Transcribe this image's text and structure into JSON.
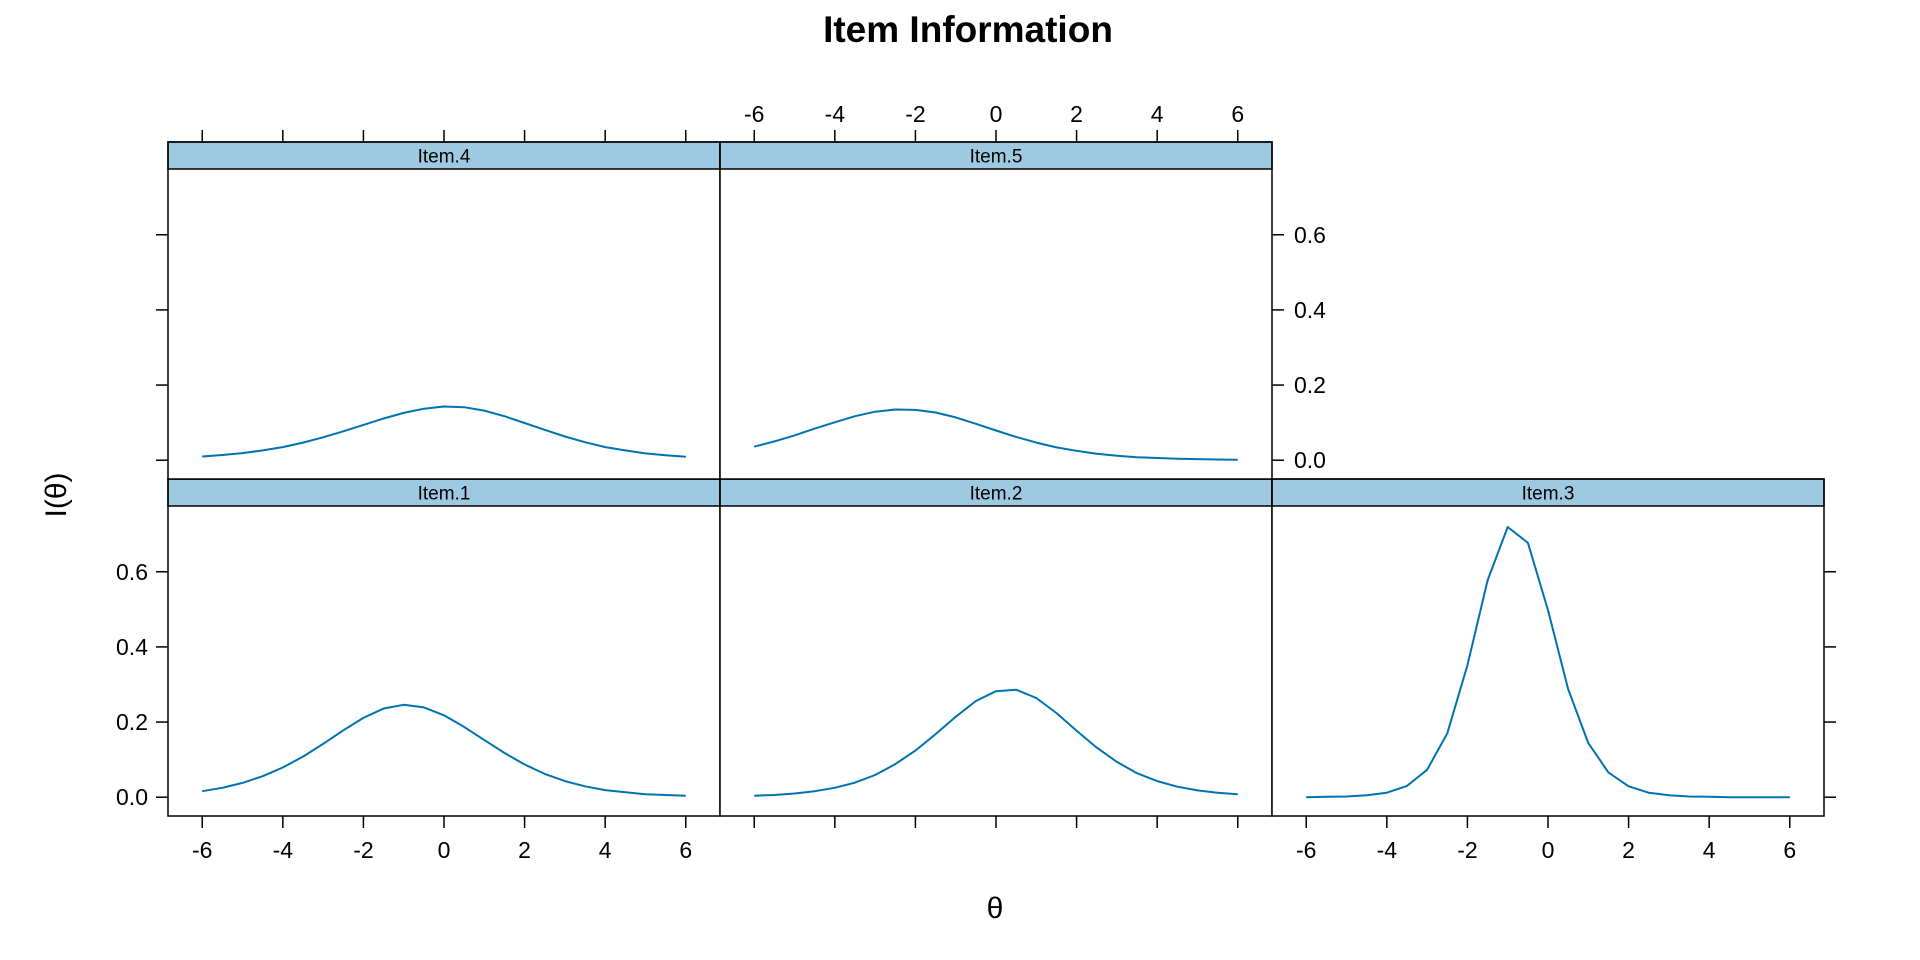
{
  "chart_data": {
    "type": "line",
    "title": "Item Information",
    "xlabel": "θ",
    "ylabel": "I(θ)",
    "xlim": [
      -6.85,
      6.85
    ],
    "ylim": [
      -0.05,
      0.775
    ],
    "x_ticks": [
      -6,
      -4,
      -2,
      0,
      2,
      4,
      6
    ],
    "y_ticks": [
      0.0,
      0.2,
      0.4,
      0.6
    ],
    "x_tick_labels": [
      "-6",
      "-4",
      "-2",
      "0",
      "2",
      "4",
      "6"
    ],
    "y_tick_labels": [
      "0.0",
      "0.2",
      "0.4",
      "0.6"
    ],
    "grid": false,
    "line_color": "#0072B2",
    "strip_color": "#9ECAE1",
    "x": [
      -6,
      -5.5,
      -5,
      -4.5,
      -4,
      -3.5,
      -3,
      -2.5,
      -2,
      -1.5,
      -1,
      -0.5,
      0,
      0.5,
      1,
      1.5,
      2,
      2.5,
      3,
      3.5,
      4,
      4.5,
      5,
      5.5,
      6
    ],
    "panels": [
      {
        "name": "Item.1",
        "values": [
          0.016,
          0.025,
          0.038,
          0.056,
          0.079,
          0.108,
          0.142,
          0.178,
          0.211,
          0.236,
          0.246,
          0.239,
          0.218,
          0.187,
          0.152,
          0.118,
          0.087,
          0.062,
          0.043,
          0.029,
          0.019,
          0.013,
          0.008,
          0.006,
          0.004
        ]
      },
      {
        "name": "Item.2",
        "values": [
          0.004,
          0.006,
          0.01,
          0.016,
          0.025,
          0.039,
          0.059,
          0.088,
          0.124,
          0.168,
          0.214,
          0.256,
          0.282,
          0.286,
          0.264,
          0.224,
          0.177,
          0.132,
          0.094,
          0.064,
          0.043,
          0.028,
          0.018,
          0.012,
          0.008
        ]
      },
      {
        "name": "Item.3",
        "values": [
          0.0,
          0.001,
          0.002,
          0.005,
          0.012,
          0.03,
          0.073,
          0.17,
          0.351,
          0.577,
          0.719,
          0.677,
          0.498,
          0.288,
          0.144,
          0.066,
          0.029,
          0.012,
          0.005,
          0.002,
          0.001,
          0.0,
          0.0,
          0.0,
          0.0
        ]
      },
      {
        "name": "Item.4",
        "values": [
          0.01,
          0.014,
          0.019,
          0.026,
          0.035,
          0.047,
          0.061,
          0.077,
          0.094,
          0.111,
          0.126,
          0.137,
          0.143,
          0.141,
          0.132,
          0.117,
          0.099,
          0.081,
          0.063,
          0.048,
          0.035,
          0.026,
          0.018,
          0.013,
          0.009
        ]
      },
      {
        "name": "Item.5",
        "values": [
          0.036,
          0.05,
          0.066,
          0.084,
          0.101,
          0.117,
          0.129,
          0.135,
          0.134,
          0.127,
          0.114,
          0.097,
          0.079,
          0.062,
          0.047,
          0.034,
          0.025,
          0.017,
          0.012,
          0.008,
          0.006,
          0.004,
          0.003,
          0.002,
          0.001
        ]
      }
    ]
  }
}
